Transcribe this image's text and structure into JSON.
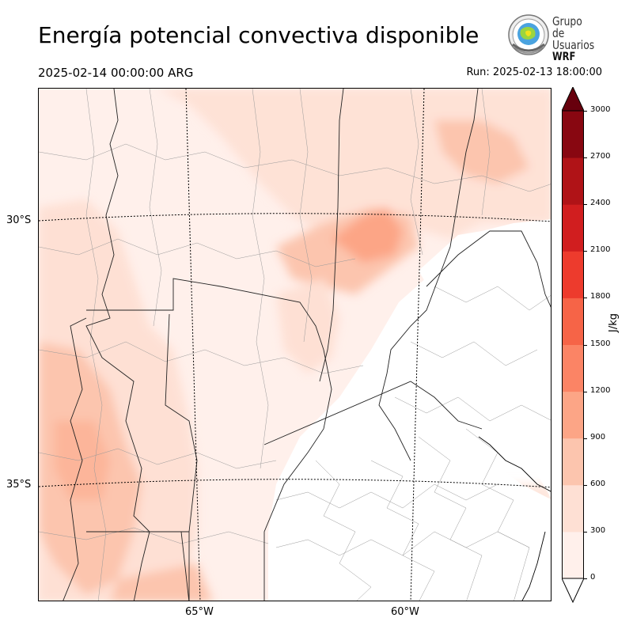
{
  "header": {
    "title": "Energía potencial convectiva disponible",
    "valid_time": "2025-02-14 00:00:00 ARG",
    "run_time": "Run: 2025-02-13 18:00:00"
  },
  "logo": {
    "line1": "Grupo de",
    "line2": "Usuarios",
    "line3": "WRF"
  },
  "map": {
    "lat_labels": [
      "30°S",
      "35°S"
    ],
    "lon_labels": [
      "65°W",
      "60°W"
    ]
  },
  "colorbar": {
    "label": "J/kg",
    "ticks": [
      "0",
      "300",
      "600",
      "900",
      "1200",
      "1500",
      "1800",
      "2100",
      "2400",
      "2700",
      "3000"
    ],
    "colors": [
      "#fff0eb",
      "#fee0d4",
      "#fcc5ae",
      "#fca586",
      "#fb8465",
      "#f66447",
      "#ed3b2d",
      "#d11e1f",
      "#b01317",
      "#880711"
    ],
    "extend_color": "#67000d"
  }
}
